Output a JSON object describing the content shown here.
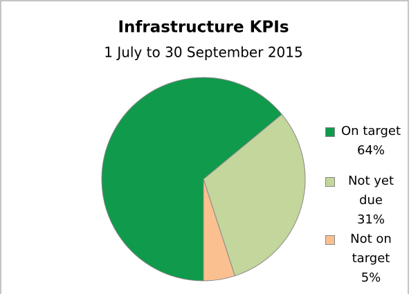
{
  "chart_data": {
    "type": "pie",
    "title": "Infrastructure KPIs",
    "subtitle": "1 July to 30 September 2015",
    "categories": [
      "On target",
      "Not yet due",
      "Not on target"
    ],
    "values": [
      64,
      31,
      5
    ],
    "value_labels": [
      "64%",
      "31%",
      "5%"
    ],
    "colors": [
      "#109a4c",
      "#c3d69b",
      "#fac090"
    ],
    "legend": "right"
  }
}
